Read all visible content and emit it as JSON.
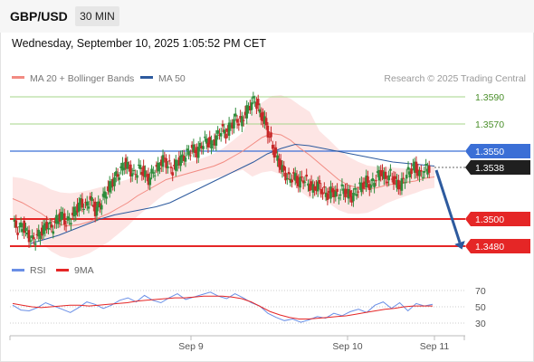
{
  "header": {
    "symbol": "GBP/USD",
    "timeframe": "30 MIN",
    "datetime": "Wednesday, September 10, 2025 1:05:52 PM CET"
  },
  "legend": {
    "ma20": "MA 20 + Bollinger Bands",
    "ma50": "MA 50",
    "credit": "Research © 2025 Trading Central"
  },
  "rsi_legend": {
    "rsi": "RSI",
    "ma": "9MA"
  },
  "colors": {
    "ma20": "#f28b82",
    "ma50": "#2d5a9e",
    "band": "#fde0df",
    "up": "#2f8c3c",
    "down": "#c62828",
    "support": "#e52626",
    "pivot": "#3b6fd6",
    "resistance": "#a6d58a",
    "arrow": "#2d5a9e",
    "rsi": "#6a8fe6",
    "rsi_ma": "#e52626"
  },
  "chart_data": [
    {
      "type": "line",
      "title": "",
      "y_ticks": [
        "1.3590",
        "1.3570",
        "1.3550",
        "1.3538",
        "1.3500",
        "1.3480"
      ],
      "ylim": [
        1.3465,
        1.3605
      ],
      "x_ticks": [
        "Sep 9",
        "Sep 10",
        "Sep 11"
      ],
      "levels": [
        {
          "label": "1.3590",
          "value": 1.359,
          "kind": "resistance"
        },
        {
          "label": "1.3570",
          "value": 1.357,
          "kind": "resistance"
        },
        {
          "label": "1.3550",
          "value": 1.355,
          "kind": "pivot"
        },
        {
          "label": "1.3538",
          "value": 1.3538,
          "kind": "last-price"
        },
        {
          "label": "1.3500",
          "value": 1.35,
          "kind": "support"
        },
        {
          "label": "1.3480",
          "value": 1.348,
          "kind": "support"
        }
      ],
      "close_path": [
        1.3498,
        1.3492,
        1.3495,
        1.3488,
        1.3484,
        1.3487,
        1.3491,
        1.3496,
        1.3493,
        1.3499,
        1.3503,
        1.3497,
        1.3501,
        1.3507,
        1.3512,
        1.3509,
        1.3515,
        1.3506,
        1.3511,
        1.3518,
        1.3524,
        1.353,
        1.3534,
        1.3541,
        1.3537,
        1.3532,
        1.3538,
        1.3534,
        1.3529,
        1.3535,
        1.3538,
        1.3544,
        1.354,
        1.3536,
        1.3542,
        1.3545,
        1.3548,
        1.3552,
        1.3549,
        1.3555,
        1.3558,
        1.3554,
        1.356,
        1.3566,
        1.3563,
        1.3569,
        1.3574,
        1.3571,
        1.3578,
        1.3584,
        1.3588,
        1.3578,
        1.3572,
        1.356,
        1.3549,
        1.3541,
        1.3534,
        1.3529,
        1.3532,
        1.3527,
        1.353,
        1.3526,
        1.3522,
        1.3525,
        1.352,
        1.3518,
        1.3521,
        1.3517,
        1.3522,
        1.3519,
        1.3516,
        1.3521,
        1.3525,
        1.3528,
        1.3524,
        1.3531,
        1.3535,
        1.3529,
        1.3533,
        1.3527,
        1.3524,
        1.3531,
        1.3536,
        1.3539,
        1.3532,
        1.3536,
        1.3538
      ],
      "ma20": [
        1.3515,
        1.3512,
        1.3508,
        1.3504,
        1.3499,
        1.3496,
        1.3495,
        1.3496,
        1.3498,
        1.3501,
        1.3504,
        1.3508,
        1.3512,
        1.3517,
        1.3521,
        1.3525,
        1.3529,
        1.3531,
        1.3533,
        1.3535,
        1.3537,
        1.3539,
        1.3542,
        1.3546,
        1.355,
        1.3555,
        1.356,
        1.3563,
        1.3562,
        1.3558,
        1.3552,
        1.3547,
        1.3541,
        1.3535,
        1.3529,
        1.3525,
        1.3523,
        1.3522,
        1.3523,
        1.3525,
        1.3526,
        1.3527,
        1.3528,
        1.353,
        1.3531
      ],
      "ma50": [
        1.3482,
        1.3485,
        1.3488,
        1.3492,
        1.3496,
        1.35,
        1.3503,
        1.3505,
        1.3507,
        1.3509,
        1.3512,
        1.3517,
        1.3522,
        1.3527,
        1.3532,
        1.3537,
        1.3542,
        1.3548,
        1.3552,
        1.3555,
        1.3554,
        1.3552,
        1.355,
        1.3548,
        1.3546,
        1.3544,
        1.3542,
        1.3541,
        1.354,
        1.3539
      ]
    },
    {
      "type": "line",
      "title": "",
      "y_ticks": [
        "70",
        "50",
        "30"
      ],
      "ylim": [
        20,
        80
      ],
      "series": [
        {
          "name": "RSI",
          "values": [
            52,
            46,
            45,
            49,
            55,
            51,
            47,
            43,
            49,
            56,
            53,
            48,
            52,
            58,
            61,
            56,
            64,
            58,
            55,
            61,
            66,
            59,
            62,
            65,
            68,
            63,
            60,
            66,
            61,
            55,
            51,
            42,
            37,
            33,
            35,
            31,
            34,
            38,
            36,
            42,
            39,
            44,
            47,
            43,
            52,
            56,
            48,
            55,
            45,
            54,
            51,
            53
          ]
        },
        {
          "name": "9MA",
          "values": [
            54,
            52,
            50,
            49,
            50,
            51,
            52,
            52,
            51,
            52,
            53,
            54,
            55,
            57,
            58,
            59,
            60,
            61,
            61,
            62,
            63,
            63,
            63,
            62,
            60,
            56,
            50,
            44,
            40,
            37,
            35,
            35,
            36,
            37,
            38,
            39,
            41,
            43,
            45,
            47,
            48,
            50,
            51,
            51,
            51
          ]
        }
      ]
    }
  ]
}
